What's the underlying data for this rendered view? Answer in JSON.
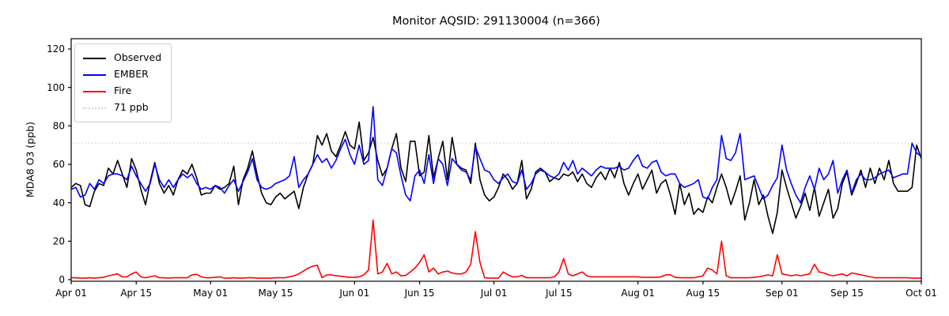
{
  "figure": {
    "background": "#ffffff"
  },
  "chart_data": {
    "type": "line",
    "title": "Monitor AQSID: 291130004 (n=366)",
    "ylabel": "MDA8 O3 (ppb)",
    "x_tick_labels": [
      "Apr 01",
      "Apr 15",
      "May 01",
      "May 15",
      "Jun 01",
      "Jun 15",
      "Jul 01",
      "Jul 15",
      "Aug 01",
      "Aug 15",
      "Sep 01",
      "Sep 15",
      "Oct 01"
    ],
    "x_tick_days": [
      0,
      14,
      30,
      44,
      61,
      75,
      91,
      105,
      122,
      136,
      153,
      167,
      183
    ],
    "y_ticks": [
      0,
      20,
      40,
      60,
      80,
      100,
      120
    ],
    "ylim": [
      -1,
      125
    ],
    "grid": false,
    "legend_position": "upper-left",
    "threshold": {
      "label": "71 ppb",
      "value": 71,
      "color": "#d3d3d3",
      "style": "dotted"
    },
    "legend": [
      {
        "label": "Observed",
        "color": "#000000",
        "style": "solid"
      },
      {
        "label": "EMBER",
        "color": "#0000ff",
        "style": "solid"
      },
      {
        "label": "Fire",
        "color": "#ff0000",
        "style": "solid"
      },
      {
        "label": "71 ppb",
        "color": "#d3d3d3",
        "style": "dotted"
      }
    ],
    "series": [
      {
        "name": "Observed",
        "color": "#000000",
        "values": [
          48,
          50,
          49,
          39,
          38,
          46,
          50,
          49,
          58,
          55,
          62,
          55,
          48,
          63,
          57,
          47,
          39,
          51,
          61,
          50,
          45,
          49,
          44,
          52,
          57,
          55,
          60,
          53,
          44,
          45,
          45,
          49,
          47,
          48,
          50,
          59,
          39,
          52,
          58,
          67,
          55,
          45,
          40,
          39,
          43,
          45,
          42,
          44,
          46,
          37,
          48,
          55,
          60,
          75,
          70,
          76,
          67,
          64,
          70,
          77,
          70,
          68,
          82,
          62,
          66,
          74,
          62,
          54,
          58,
          68,
          76,
          58,
          51,
          72,
          72,
          54,
          56,
          75,
          53,
          63,
          72,
          52,
          74,
          60,
          58,
          57,
          50,
          71,
          52,
          44,
          41,
          43,
          48,
          55,
          52,
          47,
          50,
          62,
          42,
          47,
          56,
          58,
          56,
          51,
          53,
          52,
          55,
          54,
          56,
          51,
          55,
          50,
          48,
          53,
          56,
          52,
          58,
          53,
          61,
          50,
          44,
          50,
          55,
          47,
          52,
          57,
          45,
          50,
          52,
          44,
          34,
          50,
          39,
          45,
          34,
          37,
          35,
          43,
          40,
          48,
          55,
          48,
          39,
          46,
          54,
          31,
          40,
          52,
          39,
          44,
          33,
          24,
          35,
          57,
          48,
          40,
          32,
          38,
          45,
          36,
          48,
          33,
          40,
          47,
          32,
          37,
          50,
          56,
          44,
          50,
          57,
          48,
          58,
          50,
          58,
          52,
          62,
          50,
          46,
          46,
          46,
          48,
          70,
          63
        ]
      },
      {
        "name": "EMBER",
        "color": "#0000ff",
        "values": [
          47,
          48,
          43,
          44,
          50,
          47,
          52,
          50,
          54,
          55,
          55,
          54,
          52,
          59,
          54,
          50,
          46,
          50,
          60,
          52,
          48,
          52,
          48,
          52,
          55,
          53,
          55,
          50,
          47,
          48,
          47,
          49,
          48,
          45,
          49,
          52,
          46,
          51,
          56,
          63,
          52,
          48,
          47,
          48,
          50,
          51,
          52,
          54,
          64,
          48,
          52,
          55,
          60,
          65,
          61,
          63,
          58,
          62,
          68,
          73,
          65,
          60,
          70,
          60,
          62,
          90,
          52,
          49,
          58,
          68,
          66,
          54,
          44,
          41,
          54,
          57,
          50,
          65,
          50,
          63,
          60,
          49,
          63,
          60,
          57,
          56,
          52,
          69,
          63,
          57,
          56,
          52,
          50,
          53,
          55,
          51,
          50,
          57,
          47,
          50,
          55,
          57,
          56,
          54,
          53,
          55,
          61,
          57,
          62,
          55,
          58,
          56,
          54,
          57,
          59,
          58,
          58,
          58,
          59,
          57,
          58,
          62,
          65,
          59,
          58,
          61,
          62,
          56,
          54,
          55,
          55,
          50,
          48,
          49,
          50,
          52,
          43,
          42,
          48,
          52,
          75,
          63,
          62,
          66,
          76,
          52,
          53,
          54,
          48,
          42,
          44,
          49,
          53,
          70,
          57,
          50,
          44,
          40,
          48,
          54,
          47,
          58,
          52,
          55,
          62,
          45,
          52,
          57,
          45,
          52,
          55,
          52,
          52,
          53,
          55,
          56,
          57,
          53,
          54,
          55,
          55,
          71,
          66,
          64
        ]
      },
      {
        "name": "Fire",
        "color": "#ff0000",
        "values": [
          1,
          1,
          0.8,
          0.8,
          1,
          0.8,
          1,
          1.2,
          2,
          2.5,
          3,
          1.5,
          1.5,
          3,
          4,
          1.5,
          1,
          1.5,
          2,
          1,
          1,
          0.8,
          1,
          1,
          1,
          1,
          2.5,
          2.8,
          1.5,
          1,
          1,
          1.2,
          1.5,
          0.8,
          0.8,
          1,
          0.8,
          0.8,
          1,
          1,
          0.8,
          0.8,
          0.8,
          0.8,
          1,
          1,
          1,
          1.5,
          2,
          3,
          4.5,
          6,
          7,
          7.5,
          1,
          2.5,
          2.5,
          2,
          1.8,
          1.5,
          1.2,
          1.2,
          1.5,
          2.5,
          5,
          31,
          3,
          4,
          8.5,
          3,
          4,
          2,
          2.2,
          4,
          6,
          9,
          13,
          4,
          6,
          3,
          4,
          4.5,
          3.5,
          3,
          3,
          4,
          8,
          25,
          9,
          1,
          0.8,
          0.8,
          0.8,
          4,
          2.6,
          1.5,
          1.5,
          2.2,
          1,
          1,
          1,
          1,
          1,
          1,
          1.5,
          4,
          11,
          3,
          2,
          3,
          4,
          2,
          1.5,
          1.5,
          1.5,
          1.5,
          1.5,
          1.5,
          1.5,
          1.5,
          1.5,
          1.5,
          1.5,
          1.2,
          1.2,
          1.2,
          1.2,
          1.5,
          2.5,
          2.5,
          1.2,
          1,
          1,
          1,
          1,
          1.5,
          2,
          6,
          5,
          3,
          20,
          2,
          1,
          1,
          1,
          1,
          1,
          1.2,
          1.5,
          2,
          2.5,
          2,
          13,
          3,
          2.5,
          2,
          2.5,
          2,
          2.5,
          3,
          8,
          4,
          3.5,
          2.5,
          2,
          2.5,
          3,
          2,
          3.5,
          3,
          2.5,
          2,
          1.5,
          1,
          1,
          1,
          1,
          1,
          1,
          1,
          1,
          0.8,
          0.8,
          0.8
        ]
      }
    ]
  }
}
